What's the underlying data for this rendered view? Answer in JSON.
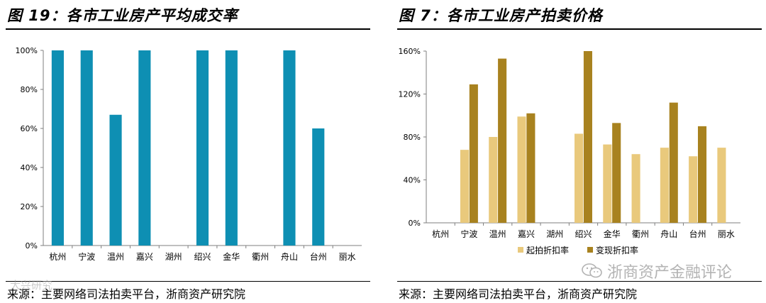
{
  "left": {
    "title": "图 19：各市工业房产平均成交率",
    "source": "来源：主要网络司法拍卖平台，浙商资产研究院",
    "watermark": "大兴研究"
  },
  "right": {
    "title": "图 7：各市工业房产拍卖价格",
    "source": "来源：主要网络司法拍卖平台，浙商资产研究院",
    "watermark": "浙商资产金融评论"
  },
  "colors": {
    "teal": "#0E8FB3",
    "light_gold": "#E9C97C",
    "dark_gold": "#A8821F"
  },
  "chart_data": [
    {
      "type": "bar",
      "title": "各市工业房产平均成交率",
      "categories": [
        "杭州",
        "宁波",
        "温州",
        "嘉兴",
        "湖州",
        "绍兴",
        "金华",
        "衢州",
        "舟山",
        "台州",
        "丽水"
      ],
      "series": [
        {
          "values": [
            100,
            100,
            67,
            100,
            null,
            100,
            100,
            null,
            100,
            60,
            null
          ]
        }
      ],
      "ylim": [
        0,
        100
      ],
      "yticks": [
        0,
        20,
        40,
        60,
        80,
        100
      ],
      "tick_format": "percent",
      "legend": "none",
      "grid": false
    },
    {
      "type": "bar",
      "title": "各市工业房产拍卖价格",
      "categories": [
        "杭州",
        "宁波",
        "温州",
        "嘉兴",
        "湖州",
        "绍兴",
        "金华",
        "衢州",
        "舟山",
        "台州",
        "丽水"
      ],
      "series": [
        {
          "name": "起拍折扣率",
          "values": [
            null,
            68,
            80,
            99,
            null,
            83,
            73,
            64,
            70,
            62,
            70
          ]
        },
        {
          "name": "变现折扣率",
          "values": [
            null,
            129,
            153,
            102,
            null,
            160,
            93,
            null,
            112,
            90,
            null
          ]
        }
      ],
      "ylim": [
        0,
        160
      ],
      "yticks": [
        0,
        40,
        80,
        120,
        160
      ],
      "tick_format": "percent",
      "legend": "bottom",
      "grid": false
    }
  ]
}
